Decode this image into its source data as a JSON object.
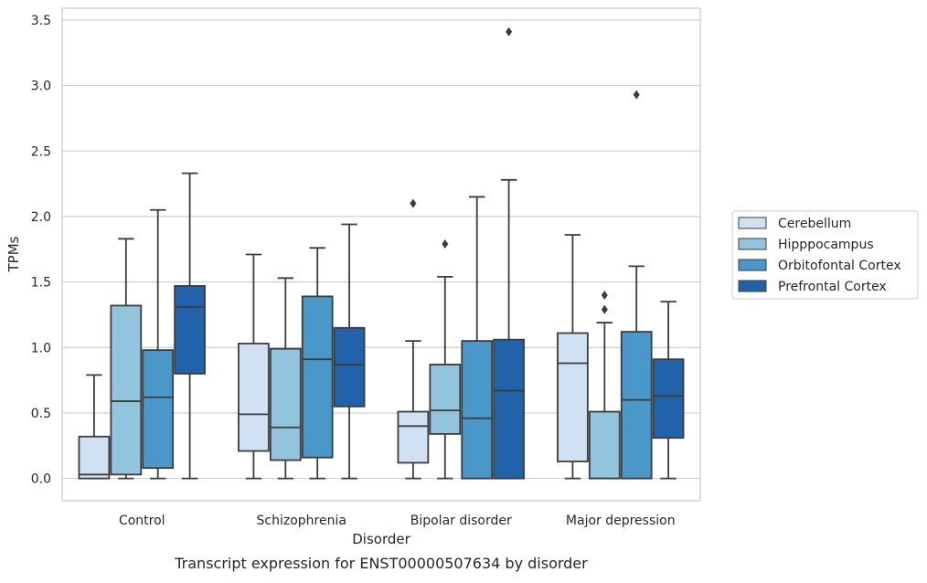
{
  "caption": "Transcript expression for ENST00000507634 by disorder",
  "chart_data": {
    "type": "box",
    "title": "",
    "xlabel": "Disorder",
    "ylabel": "TPMs",
    "ylim": [
      -0.17,
      3.59
    ],
    "yticks": [
      "0.0",
      "0.5",
      "1.0",
      "1.5",
      "2.0",
      "2.5",
      "3.0",
      "3.5"
    ],
    "grid": "horizontal",
    "legend": {
      "placement": "right",
      "title": ""
    },
    "categories": [
      "Control",
      "Schizophrenia",
      "Bipolar disorder",
      "Major depression"
    ],
    "series": [
      {
        "name": "Cerebellum",
        "color": "#cfe1f2",
        "boxes": [
          {
            "whislo": 0.0,
            "q1": 0.0,
            "med": 0.03,
            "q3": 0.32,
            "whishi": 0.79,
            "fliers": []
          },
          {
            "whislo": 0.0,
            "q1": 0.21,
            "med": 0.49,
            "q3": 1.03,
            "whishi": 1.71,
            "fliers": []
          },
          {
            "whislo": 0.0,
            "q1": 0.12,
            "med": 0.4,
            "q3": 0.51,
            "whishi": 1.05,
            "fliers": [
              2.1
            ]
          },
          {
            "whislo": 0.0,
            "q1": 0.13,
            "med": 0.88,
            "q3": 1.11,
            "whishi": 1.86,
            "fliers": []
          }
        ]
      },
      {
        "name": "Hipppocampus",
        "color": "#93c4de",
        "boxes": [
          {
            "whislo": 0.0,
            "q1": 0.03,
            "med": 0.59,
            "q3": 1.32,
            "whishi": 1.83,
            "fliers": []
          },
          {
            "whislo": 0.0,
            "q1": 0.14,
            "med": 0.39,
            "q3": 0.99,
            "whishi": 1.53,
            "fliers": []
          },
          {
            "whislo": 0.0,
            "q1": 0.34,
            "med": 0.52,
            "q3": 0.87,
            "whishi": 1.54,
            "fliers": [
              1.79
            ]
          },
          {
            "whislo": 0.0,
            "q1": 0.0,
            "med": 0.0,
            "q3": 0.51,
            "whishi": 1.19,
            "fliers": [
              1.29,
              1.4
            ]
          }
        ]
      },
      {
        "name": "Orbitofontal Cortex",
        "color": "#4a98c9",
        "boxes": [
          {
            "whislo": 0.0,
            "q1": 0.08,
            "med": 0.62,
            "q3": 0.98,
            "whishi": 2.05,
            "fliers": []
          },
          {
            "whislo": 0.0,
            "q1": 0.16,
            "med": 0.91,
            "q3": 1.39,
            "whishi": 1.76,
            "fliers": []
          },
          {
            "whislo": 0.0,
            "q1": 0.0,
            "med": 0.46,
            "q3": 1.05,
            "whishi": 2.15,
            "fliers": []
          },
          {
            "whislo": 0.0,
            "q1": 0.0,
            "med": 0.6,
            "q3": 1.12,
            "whishi": 1.62,
            "fliers": [
              2.93
            ]
          }
        ]
      },
      {
        "name": "Prefrontal Cortex",
        "color": "#2163aa",
        "boxes": [
          {
            "whislo": 0.0,
            "q1": 0.8,
            "med": 1.31,
            "q3": 1.47,
            "whishi": 2.33,
            "fliers": []
          },
          {
            "whislo": 0.0,
            "q1": 0.55,
            "med": 0.87,
            "q3": 1.15,
            "whishi": 1.94,
            "fliers": []
          },
          {
            "whislo": 0.0,
            "q1": 0.0,
            "med": 0.67,
            "q3": 1.06,
            "whishi": 2.28,
            "fliers": [
              3.41
            ]
          },
          {
            "whislo": 0.0,
            "q1": 0.31,
            "med": 0.63,
            "q3": 0.91,
            "whishi": 1.35,
            "fliers": []
          }
        ]
      }
    ]
  }
}
